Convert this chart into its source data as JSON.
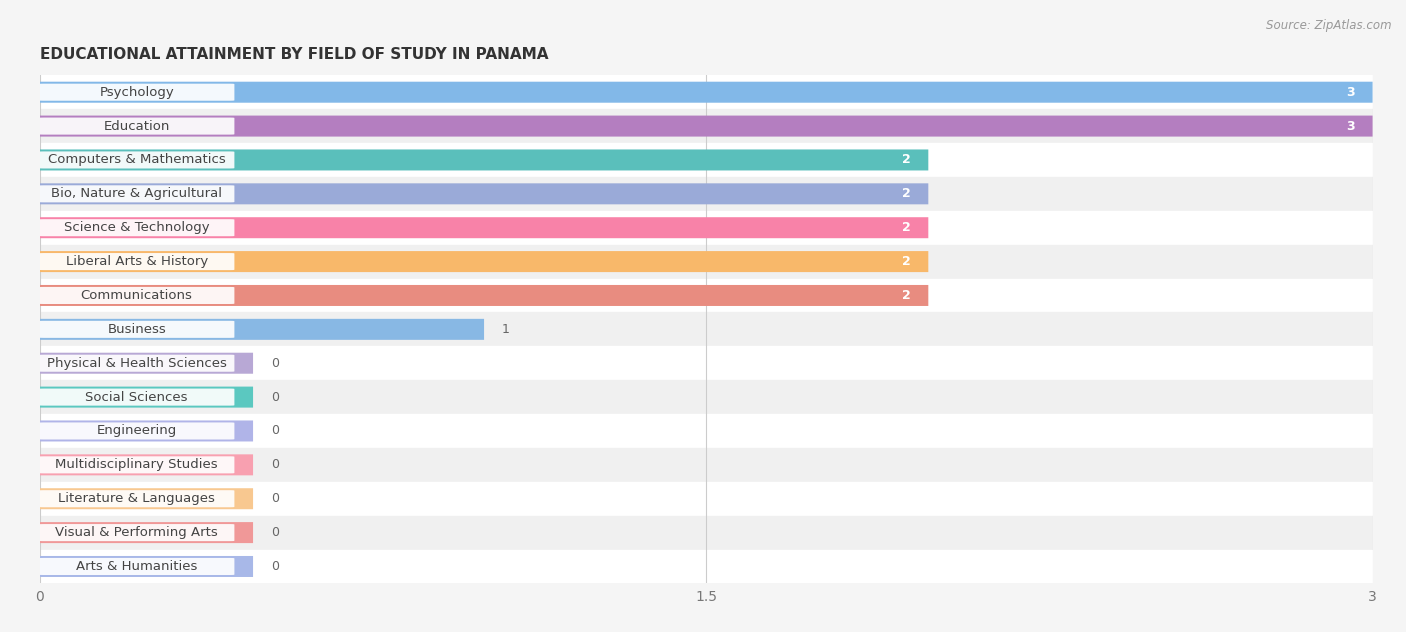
{
  "title": "EDUCATIONAL ATTAINMENT BY FIELD OF STUDY IN PANAMA",
  "source": "Source: ZipAtlas.com",
  "categories": [
    "Psychology",
    "Education",
    "Computers & Mathematics",
    "Bio, Nature & Agricultural",
    "Science & Technology",
    "Liberal Arts & History",
    "Communications",
    "Business",
    "Physical & Health Sciences",
    "Social Sciences",
    "Engineering",
    "Multidisciplinary Studies",
    "Literature & Languages",
    "Visual & Performing Arts",
    "Arts & Humanities"
  ],
  "values": [
    3,
    3,
    2,
    2,
    2,
    2,
    2,
    1,
    0,
    0,
    0,
    0,
    0,
    0,
    0
  ],
  "bar_colors": [
    "#82B8E8",
    "#B47EC0",
    "#5ABFBB",
    "#9AAAD8",
    "#F882A8",
    "#F8B86A",
    "#E88C80",
    "#88B8E4",
    "#B8A8D5",
    "#5BC8C0",
    "#B0B4E8",
    "#F8A0B0",
    "#F8C890",
    "#F09898",
    "#A8B8E8"
  ],
  "xlim": [
    0,
    3
  ],
  "xticks": [
    0,
    1.5,
    3
  ],
  "bar_height": 0.62,
  "row_colors": [
    "#ffffff",
    "#f0f0f0"
  ],
  "background_color": "#f5f5f5",
  "title_fontsize": 11,
  "value_fontsize": 9,
  "label_fontsize": 9.5,
  "zero_bar_width": 0.48
}
